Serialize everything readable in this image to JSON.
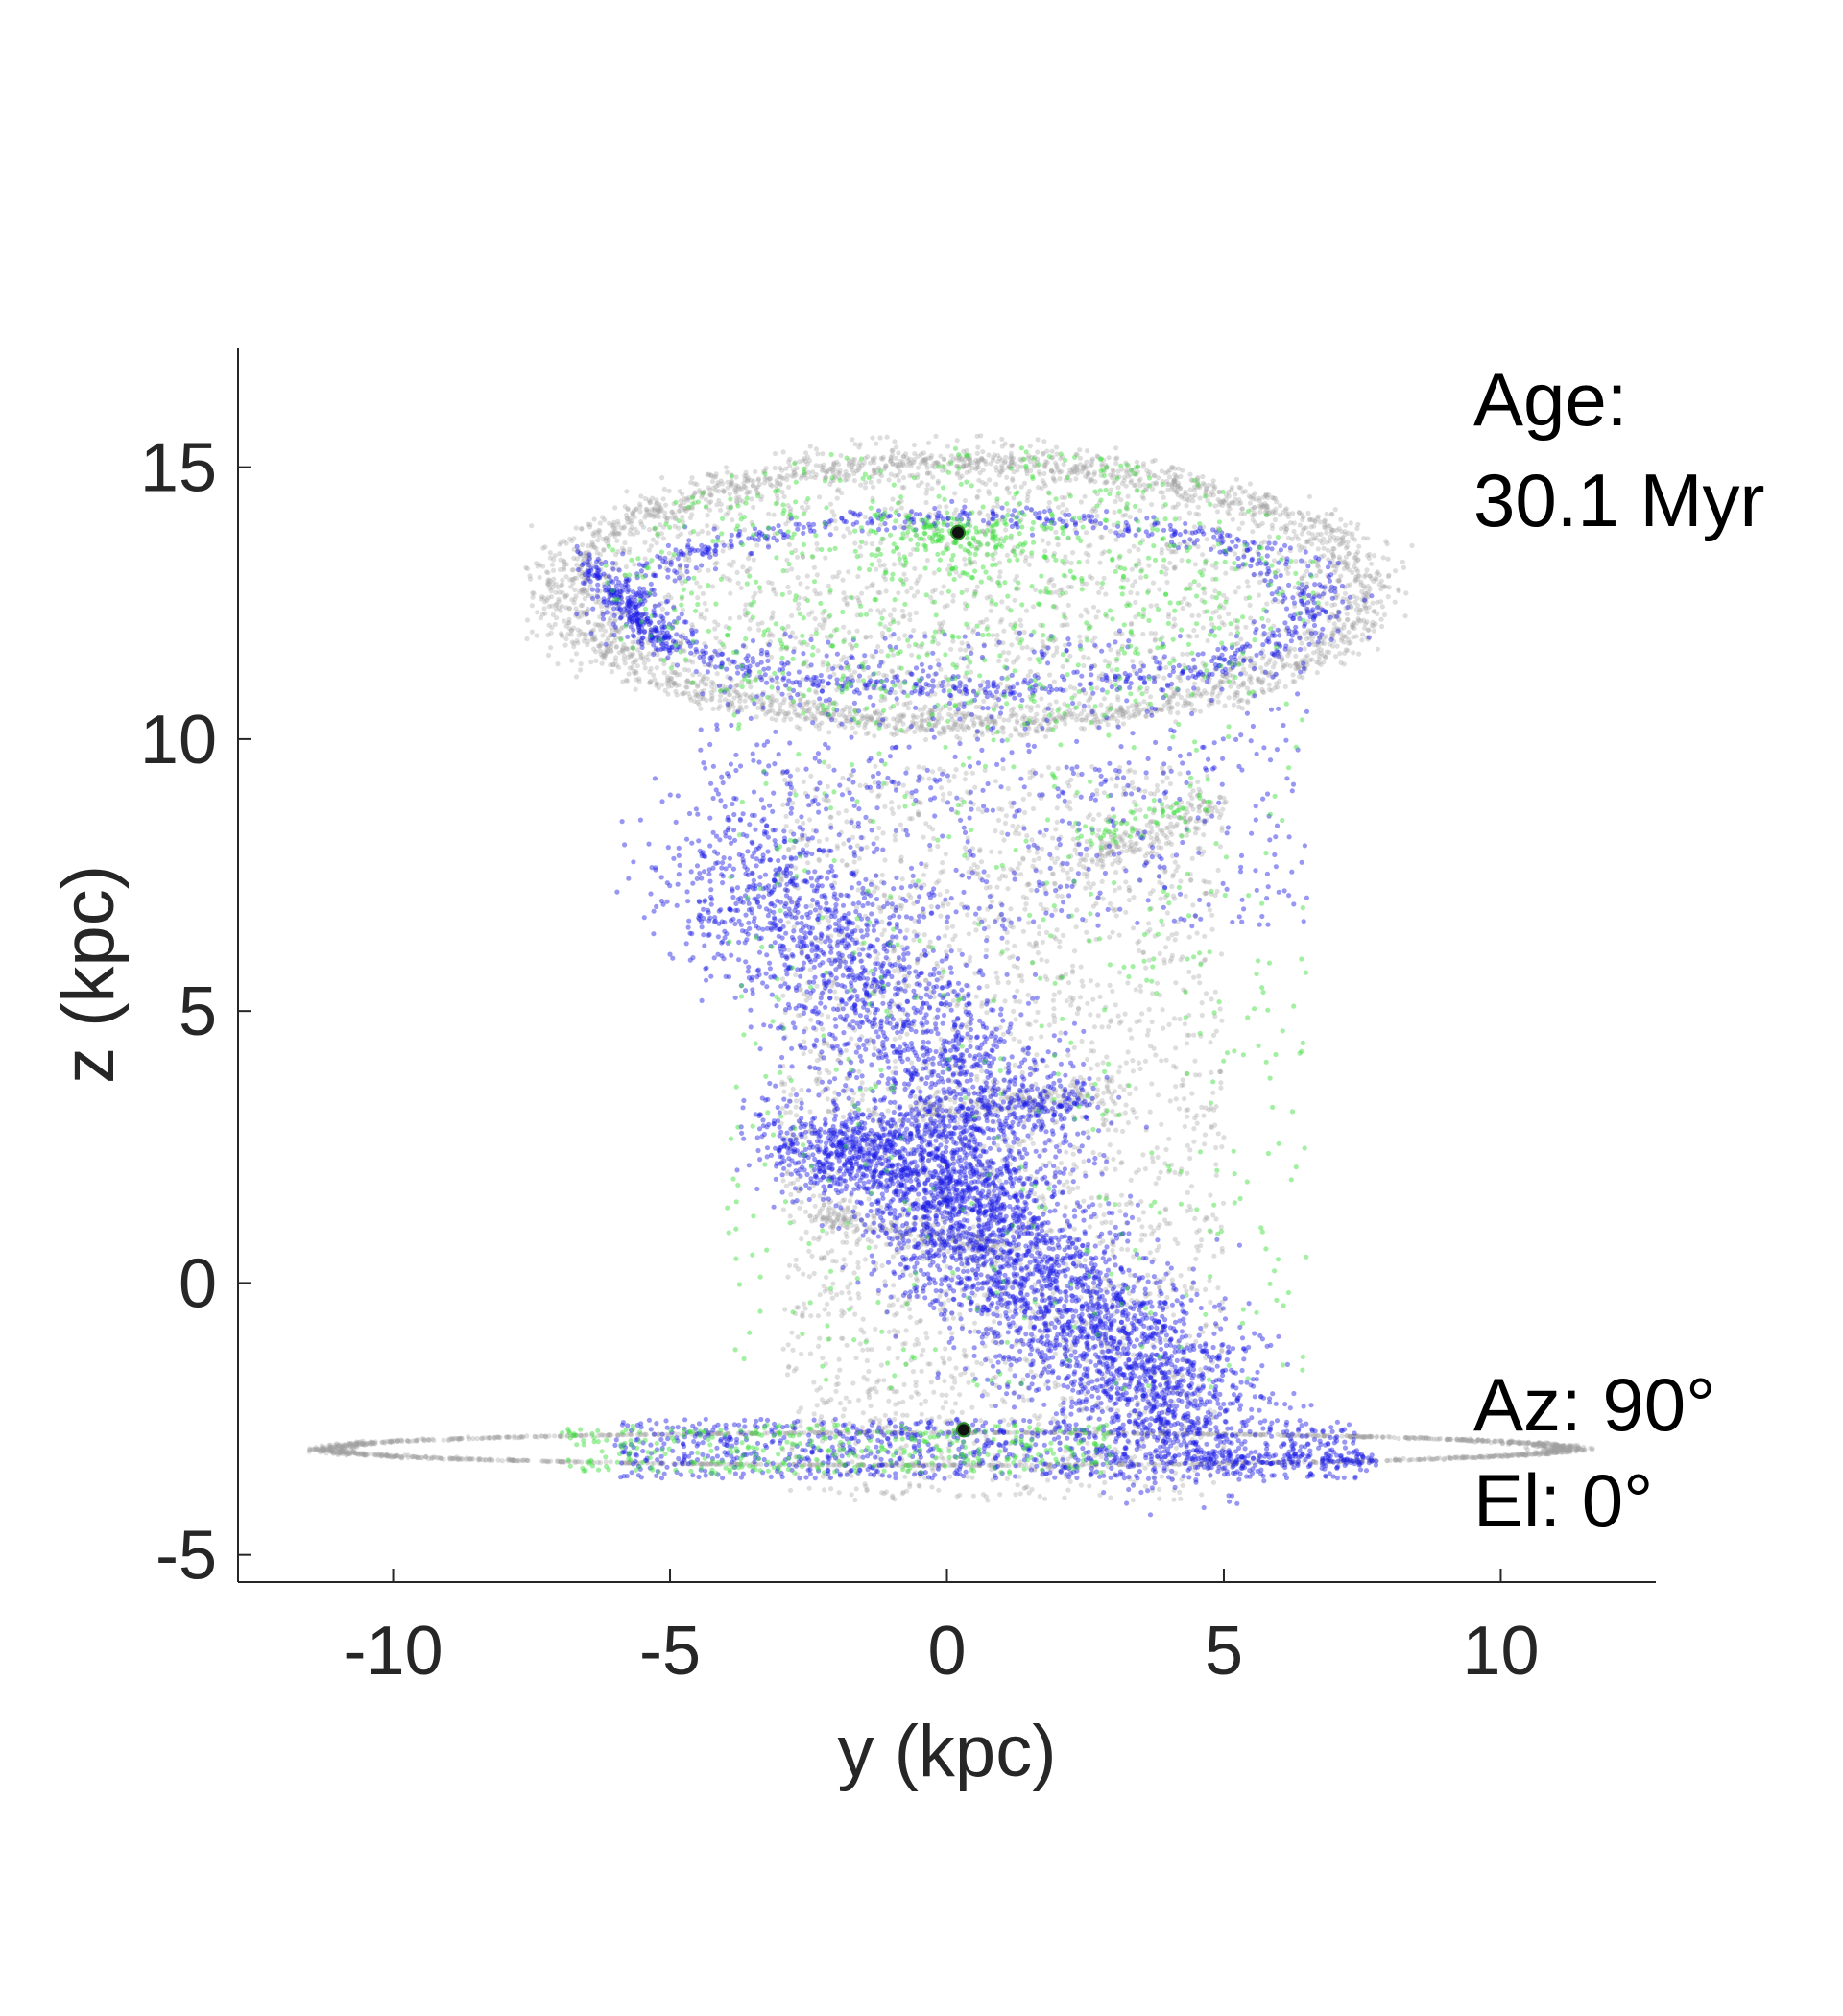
{
  "chart_data": {
    "type": "scatter",
    "xlabel": "y (kpc)",
    "ylabel": "z (kpc)",
    "xlim": [
      -12.8,
      12.8
    ],
    "ylim": [
      -5.5,
      17.2
    ],
    "x_ticks": [
      -10,
      -5,
      0,
      5,
      10
    ],
    "y_ticks": [
      -5,
      0,
      5,
      10,
      15
    ],
    "x_tick_labels": [
      "-10",
      "-5",
      "0",
      "5",
      "10"
    ],
    "y_tick_labels": [
      "-5",
      "0",
      "5",
      "10",
      "15"
    ],
    "grid": false,
    "box": "left-and-bottom axes only",
    "annotations": {
      "age_label": "Age:",
      "age_value": "30.1 Myr",
      "azimuth": "Az: 90°",
      "elevation": "El: 0°"
    },
    "colors": {
      "gray": "#a0a0a0",
      "blue": "#1a1ae6",
      "green": "#33dd33",
      "marker": "#111111"
    },
    "markers": [
      {
        "y": 0.2,
        "z": 13.8
      },
      {
        "y": 0.3,
        "z": -2.7
      }
    ],
    "series": [
      {
        "color_key": "gray",
        "components": [
          {
            "kind": "ring",
            "cy": 0.3,
            "cz": 12.7,
            "ry": 7.2,
            "rz": 2.4,
            "width": 0.35,
            "n": 2200
          },
          {
            "kind": "disk",
            "cy": 0.0,
            "cz": 12.8,
            "ry": 6.8,
            "rz": 2.8,
            "n": 1600
          },
          {
            "kind": "ring",
            "cy": 0.0,
            "cz": -3.05,
            "ry": 11.2,
            "rz": 0.3,
            "width": 0.12,
            "n": 1600
          },
          {
            "kind": "box",
            "y0": -3.0,
            "y1": 5.0,
            "z0": -4.0,
            "z1": 9.5,
            "n": 2600
          },
          {
            "kind": "line",
            "y0": -2.5,
            "z0": 1.3,
            "y1": 1.0,
            "z1": 0.6,
            "spread": 0.12,
            "n": 200
          },
          {
            "kind": "line",
            "y0": -0.5,
            "z0": 3.2,
            "y1": 3.0,
            "z1": 3.5,
            "spread": 0.12,
            "n": 180
          },
          {
            "kind": "line",
            "y0": 2.5,
            "z0": 7.8,
            "y1": 5.0,
            "z1": 8.8,
            "spread": 0.15,
            "n": 150
          }
        ]
      },
      {
        "color_key": "blue",
        "components": [
          {
            "kind": "ring",
            "cy": 0.5,
            "cz": 12.5,
            "ry": 6.2,
            "rz": 1.6,
            "width": 0.45,
            "n": 900
          },
          {
            "kind": "box",
            "y0": -4.5,
            "y1": 6.5,
            "z0": 6.5,
            "z1": 12.0,
            "n": 700
          },
          {
            "kind": "line",
            "y0": -4.0,
            "z0": 8.0,
            "y1": 1.5,
            "z1": 2.5,
            "spread": 0.9,
            "n": 1700
          },
          {
            "kind": "line",
            "y0": -3.0,
            "z0": 2.6,
            "y1": 1.0,
            "z1": 1.6,
            "spread": 0.45,
            "n": 900
          },
          {
            "kind": "line",
            "y0": -0.5,
            "z0": 1.5,
            "y1": 4.8,
            "z1": -2.5,
            "spread": 0.8,
            "n": 2400
          },
          {
            "kind": "line",
            "y0": -2.5,
            "z0": 2.4,
            "y1": 2.5,
            "z1": 3.5,
            "spread": 0.25,
            "n": 300
          },
          {
            "kind": "line",
            "y0": -6.5,
            "z0": 13.3,
            "y1": -5.2,
            "z1": 11.8,
            "spread": 0.15,
            "n": 200
          },
          {
            "kind": "box",
            "y0": -6.0,
            "y1": 7.5,
            "z0": -3.6,
            "z1": -2.5,
            "n": 900
          },
          {
            "kind": "line",
            "y0": 4.5,
            "z0": -3.2,
            "y1": 7.8,
            "z1": -3.3,
            "spread": 0.08,
            "n": 120
          }
        ]
      },
      {
        "color_key": "green",
        "components": [
          {
            "kind": "disk",
            "cy": 0.2,
            "cz": 12.8,
            "ry": 6.6,
            "rz": 2.6,
            "n": 700
          },
          {
            "kind": "cluster",
            "cy": 0.2,
            "cz": 13.7,
            "ry": 0.9,
            "rz": 0.25,
            "n": 150
          },
          {
            "kind": "box",
            "y0": -4.0,
            "y1": 6.5,
            "z0": -2.0,
            "z1": 11.0,
            "n": 450
          },
          {
            "kind": "box",
            "y0": -7.0,
            "y1": 3.0,
            "z0": -3.5,
            "z1": -2.6,
            "n": 350
          },
          {
            "kind": "line",
            "y0": 2.0,
            "z0": 8.0,
            "y1": 4.8,
            "z1": 9.0,
            "spread": 0.15,
            "n": 60
          }
        ]
      }
    ]
  }
}
